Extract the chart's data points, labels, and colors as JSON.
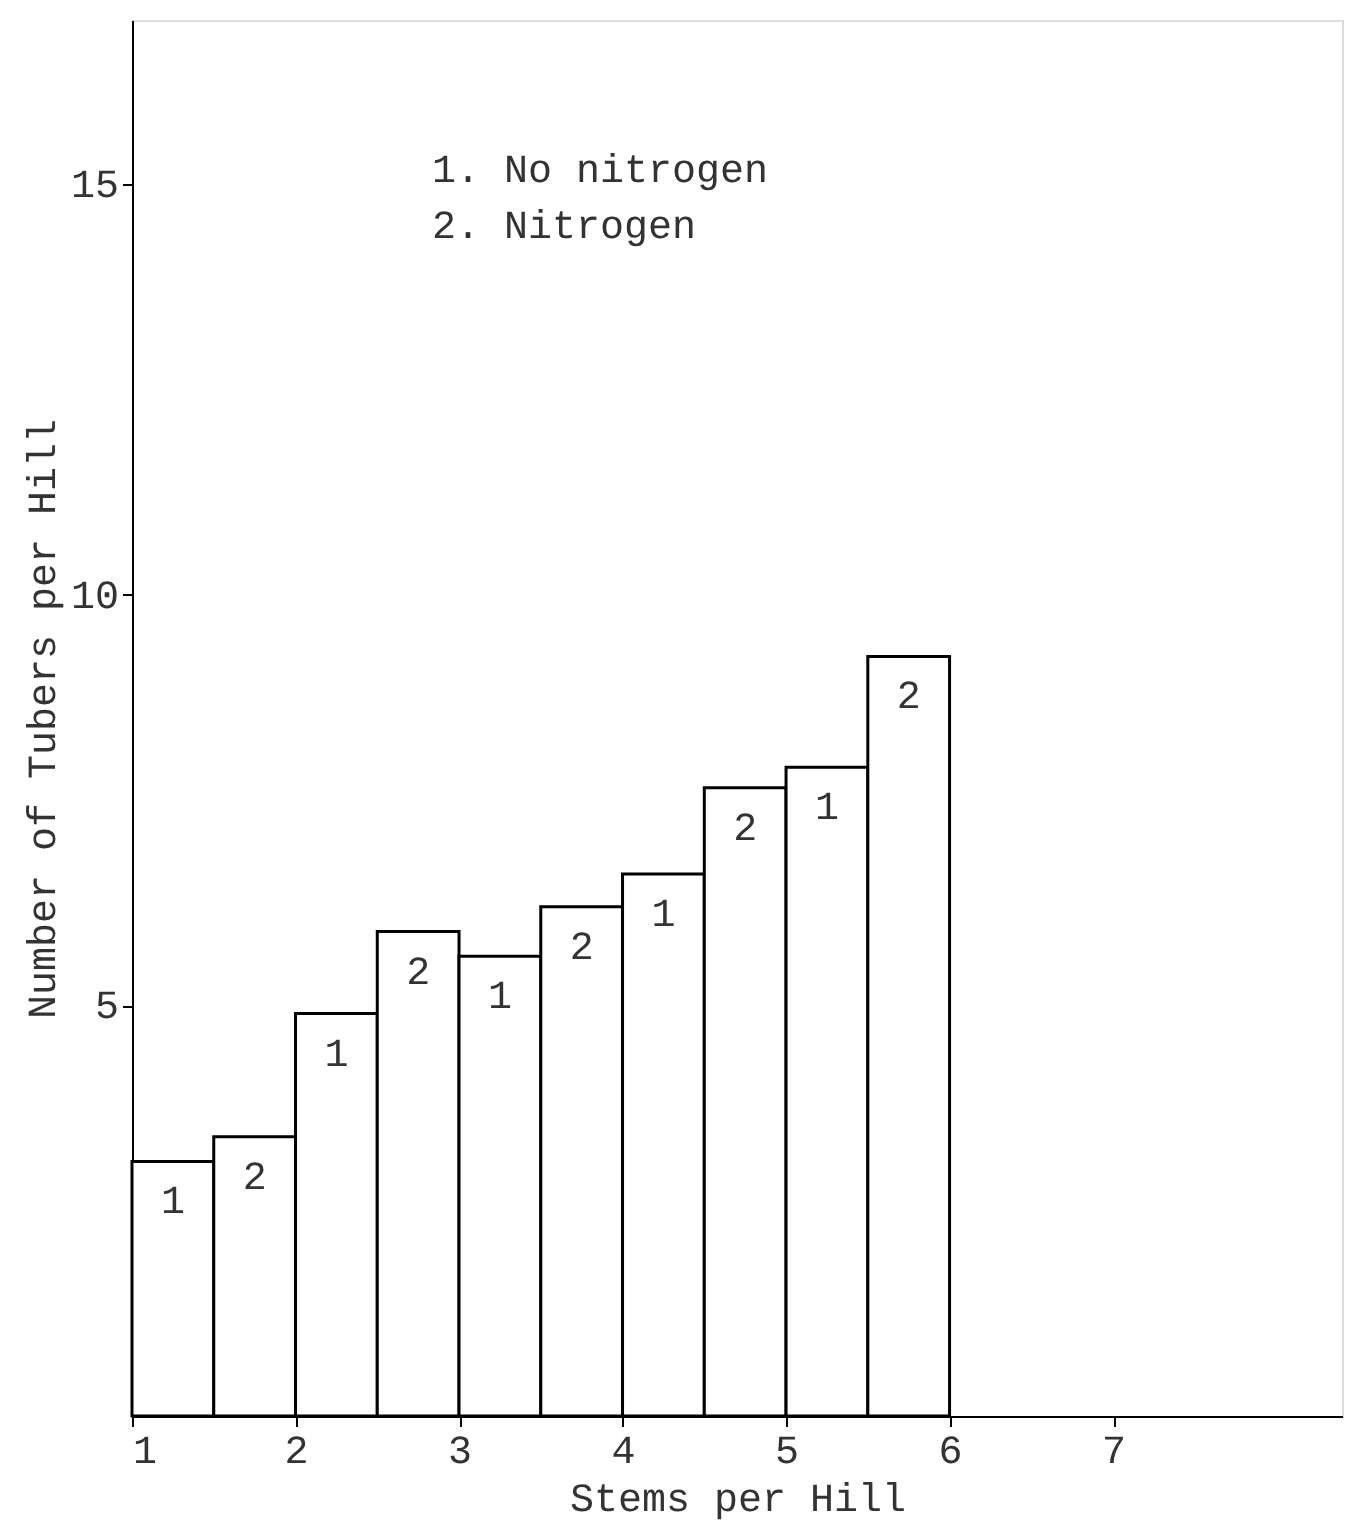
{
  "chart_data": {
    "type": "histogram",
    "xlabel": "Stems per Hill",
    "ylabel": "Number of Tubers per Hill",
    "bins": [
      1,
      1.5,
      2,
      2.5,
      3,
      3.5,
      4,
      4.5,
      5,
      5.5,
      6
    ],
    "values": [
      3.1,
      3.4,
      4.9,
      5.9,
      5.6,
      6.2,
      6.6,
      7.65,
      7.9,
      9.25
    ],
    "color": "#ffffff",
    "xlim": [
      1,
      8.4
    ],
    "xticks": [
      1,
      2,
      3,
      4,
      5,
      6,
      7
    ],
    "ylim": [
      0,
      17
    ],
    "yticks": [
      5,
      10,
      15
    ],
    "grid": false,
    "annotations": [
      "1.  No nitrogen",
      "2.  Nitrogen",
      {
        "text": "1",
        "x": 1.25,
        "y": 3.1
      },
      {
        "text": "2",
        "x": 1.75,
        "y": 3.4
      },
      {
        "text": "1",
        "x": 2.25,
        "y": 4.9
      },
      {
        "text": "2",
        "x": 2.75,
        "y": 5.9
      },
      {
        "text": "1",
        "x": 3.25,
        "y": 5.6
      },
      {
        "text": "2",
        "x": 3.75,
        "y": 6.2
      },
      {
        "text": "1",
        "x": 4.25,
        "y": 6.6
      },
      {
        "text": "2",
        "x": 4.75,
        "y": 7.65
      },
      {
        "text": "1",
        "x": 5.25,
        "y": 7.9
      },
      {
        "text": "2",
        "x": 5.75,
        "y": 9.25
      }
    ]
  }
}
